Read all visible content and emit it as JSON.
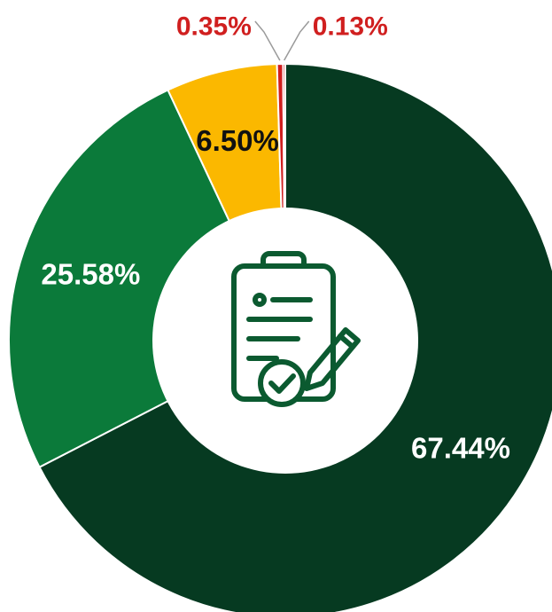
{
  "chart_data": {
    "type": "pie",
    "style": "donut",
    "title": "",
    "slices": [
      {
        "label": "67.44%",
        "value": 67.44,
        "color": "#063a21",
        "label_color": "#ffffff",
        "label_placement": "inside"
      },
      {
        "label": "25.58%",
        "value": 25.58,
        "color": "#0b7a3a",
        "label_color": "#ffffff",
        "label_placement": "inside"
      },
      {
        "label": "6.50%",
        "value": 6.5,
        "color": "#fbb800",
        "label_color": "#111111",
        "label_placement": "inside"
      },
      {
        "label": "0.35%",
        "value": 0.35,
        "color": "#d01f1f",
        "label_color": "#d01f1f",
        "label_placement": "outside-left"
      },
      {
        "label": "0.13%",
        "value": 0.13,
        "color": "#d01f1f",
        "label_color": "#d01f1f",
        "label_placement": "outside-right"
      }
    ],
    "center_icon": "clipboard-checklist-with-pencil-and-checkmark-icon",
    "legend": "none"
  }
}
